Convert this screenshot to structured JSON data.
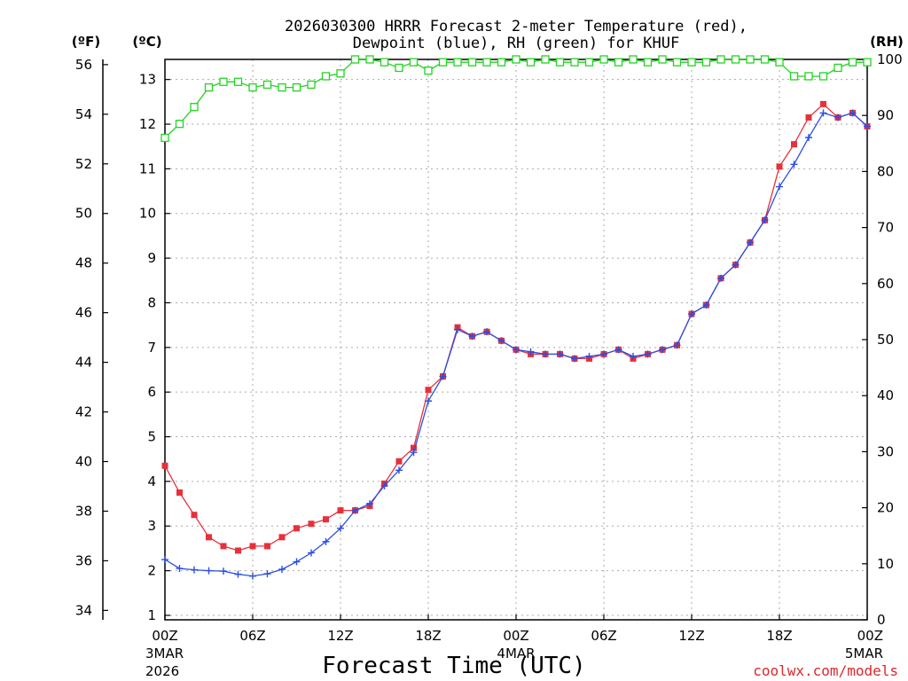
{
  "chart_data": {
    "type": "line",
    "title_line1": "2026030300 HRRR Forecast 2-meter Temperature (red),",
    "title_line2": "Dewpoint (blue), RH (green) for KHUF",
    "xlabel": "Forecast Time (UTC)",
    "unit_left_outer": "(ºF)",
    "unit_left_inner": "(ºC)",
    "unit_right": "(RH)",
    "credit": "coolwx.com/models",
    "c_ticks": [
      "1",
      "2",
      "3",
      "4",
      "5",
      "6",
      "7",
      "8",
      "9",
      "10",
      "11",
      "12",
      "13"
    ],
    "f_ticks": [
      "34",
      "36",
      "38",
      "40",
      "42",
      "44",
      "46",
      "48",
      "50",
      "52",
      "54",
      "56"
    ],
    "rh_ticks": [
      "0",
      "10",
      "20",
      "30",
      "40",
      "50",
      "60",
      "70",
      "80",
      "90",
      "100"
    ],
    "x_ticks": [
      {
        "hour": 0,
        "label": "00Z",
        "sub1": "3MAR",
        "sub2": "2026"
      },
      {
        "hour": 6,
        "label": "06Z",
        "sub1": "",
        "sub2": ""
      },
      {
        "hour": 12,
        "label": "12Z",
        "sub1": "",
        "sub2": ""
      },
      {
        "hour": 18,
        "label": "18Z",
        "sub1": "",
        "sub2": ""
      },
      {
        "hour": 24,
        "label": "00Z",
        "sub1": "4MAR",
        "sub2": ""
      },
      {
        "hour": 30,
        "label": "06Z",
        "sub1": "",
        "sub2": ""
      },
      {
        "hour": 36,
        "label": "12Z",
        "sub1": "",
        "sub2": ""
      },
      {
        "hour": 42,
        "label": "18Z",
        "sub1": "",
        "sub2": ""
      },
      {
        "hour": 48,
        "label": "00Z",
        "sub1": "5MAR",
        "sub2": ""
      }
    ],
    "c_range": [
      0.9,
      13.45
    ],
    "rh_range": [
      0,
      100
    ],
    "x_range": [
      0,
      48
    ],
    "series": [
      {
        "name": "Temperature",
        "unit": "C",
        "color": "#e8303a",
        "marker": "filled-square",
        "values": [
          4.35,
          3.75,
          3.25,
          2.75,
          2.55,
          2.45,
          2.55,
          2.55,
          2.75,
          2.95,
          3.05,
          3.15,
          3.35,
          3.35,
          3.45,
          3.95,
          4.45,
          4.75,
          6.05,
          6.35,
          7.45,
          7.25,
          7.35,
          7.15,
          6.95,
          6.85,
          6.85,
          6.85,
          6.75,
          6.75,
          6.85,
          6.95,
          6.75,
          6.85,
          6.95,
          7.05,
          7.75,
          7.95,
          8.55,
          8.85,
          9.35,
          9.85,
          11.05,
          11.55,
          12.15,
          12.45,
          12.15,
          12.25,
          11.95
        ]
      },
      {
        "name": "Dewpoint",
        "unit": "C",
        "color": "#2b4fe0",
        "marker": "plus",
        "values": [
          2.25,
          2.05,
          2.02,
          2.0,
          1.99,
          1.92,
          1.88,
          1.93,
          2.03,
          2.2,
          2.4,
          2.65,
          2.95,
          3.35,
          3.5,
          3.9,
          4.25,
          4.65,
          5.8,
          6.35,
          7.4,
          7.25,
          7.35,
          7.15,
          6.95,
          6.9,
          6.85,
          6.85,
          6.75,
          6.8,
          6.85,
          6.95,
          6.8,
          6.85,
          6.95,
          7.05,
          7.75,
          7.95,
          8.55,
          8.85,
          9.35,
          9.85,
          10.6,
          11.1,
          11.7,
          12.25,
          12.15,
          12.25,
          11.95
        ]
      },
      {
        "name": "RH",
        "unit": "%",
        "color": "#22d422",
        "marker": "open-square",
        "values": [
          86,
          88.5,
          91.5,
          95,
          96,
          96,
          95,
          95.5,
          95,
          95,
          95.5,
          97,
          97.5,
          100,
          100,
          99.5,
          98.5,
          99.5,
          98,
          99.5,
          99.5,
          99.5,
          99.5,
          99.5,
          100,
          99.5,
          100,
          99.5,
          99.5,
          99.5,
          100,
          99.5,
          100,
          99.5,
          100,
          99.5,
          99.5,
          99.5,
          100,
          100,
          100,
          100,
          99.5,
          97,
          97,
          97,
          98.5,
          99.5,
          99.5
        ]
      }
    ]
  }
}
